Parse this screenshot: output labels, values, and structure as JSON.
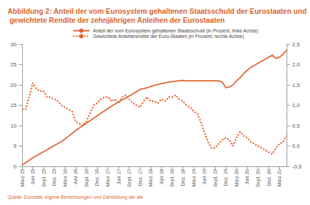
{
  "chart_data": {
    "type": "line",
    "title": "Abbildung 2: Anteil der vom Eurosystem gehaltenen Staatsschuld der Eurostaaten und gewichtete Rendite der zehnjährigen Anleihen der Eurostaaten",
    "source": "Quelle: Eurostat, eigene Berechnungen und Darstellung der aik",
    "categories": [
      "März 15",
      null,
      null,
      "Juni 15",
      null,
      null,
      "Sept. 15",
      null,
      null,
      "Dez. 15",
      null,
      null,
      "März 16",
      null,
      null,
      "Juni 16",
      null,
      null,
      "Sept. 16",
      null,
      null,
      "Dez. 16",
      null,
      null,
      "März 17",
      null,
      null,
      "Juni 17",
      null,
      null,
      "Sept. 17",
      null,
      null,
      "Dez. 17",
      null,
      null,
      "März 18",
      null,
      null,
      "Juni 18",
      null,
      null,
      "Sept. 18",
      null,
      null,
      "Dez. 18",
      null,
      null,
      "März 19",
      null,
      null,
      "Juni 19",
      null,
      null,
      "Sept. 19",
      null,
      null,
      "Dez. 19",
      null,
      null,
      "März 20",
      null,
      null,
      "Juni 20",
      null,
      null,
      "Sept. 20",
      null,
      null,
      "Dez. 20",
      null,
      null,
      "März 21",
      null,
      null
    ],
    "series": [
      {
        "name": "Anteil der vom Eurosystem gehaltenen Staatsschuld (in Prozent, linke Achse)",
        "color": "#e2622c",
        "line_style": "solid",
        "marker": "none",
        "axis": "y",
        "values": [
          0.3,
          0.9,
          1.5,
          2.1,
          2.6,
          3.1,
          3.6,
          4.1,
          4.6,
          5.1,
          5.6,
          6.1,
          6.7,
          7.4,
          8.1,
          8.8,
          9.4,
          10.0,
          10.6,
          11.2,
          11.8,
          12.4,
          13.0,
          13.6,
          14.2,
          14.8,
          15.3,
          15.8,
          16.3,
          16.8,
          17.3,
          17.8,
          18.3,
          18.9,
          19.1,
          19.3,
          19.6,
          19.9,
          20.1,
          20.3,
          20.5,
          20.7,
          20.8,
          20.9,
          21.0,
          21.1,
          21.0,
          21.0,
          21.0,
          21.0,
          21.0,
          21.0,
          21.0,
          21.0,
          21.0,
          21.0,
          20.7,
          19.3,
          19.5,
          20.0,
          21.0,
          21.8,
          22.8,
          23.6,
          24.3,
          24.8,
          25.3,
          25.8,
          26.3,
          26.8,
          27.3,
          26.5,
          26.8,
          27.5,
          28.6
        ]
      },
      {
        "name": "Gewichtete Anleiherendite der Euro-Staaten (in Prozent, rechte Achse)",
        "color": "#e2622c",
        "line_style": "dotted",
        "marker": "none",
        "axis": "y2",
        "values": [
          0.9,
          0.9,
          1.2,
          1.55,
          1.4,
          1.35,
          1.35,
          1.2,
          1.2,
          1.15,
          1.1,
          1.0,
          0.95,
          0.9,
          0.85,
          0.6,
          0.55,
          0.5,
          0.6,
          0.8,
          1.0,
          1.05,
          1.15,
          1.2,
          1.2,
          1.1,
          1.15,
          1.05,
          1.2,
          1.25,
          1.15,
          1.05,
          1.0,
          0.95,
          1.1,
          1.2,
          1.1,
          1.1,
          1.05,
          1.15,
          1.1,
          1.2,
          1.2,
          1.25,
          1.15,
          1.1,
          1.0,
          0.95,
          0.85,
          0.8,
          0.6,
          0.35,
          0.1,
          -0.05,
          -0.05,
          0.05,
          0.15,
          0.2,
          0.15,
          0.0,
          0.2,
          0.35,
          0.25,
          0.2,
          0.1,
          0.05,
          0.0,
          -0.05,
          -0.1,
          -0.15,
          -0.2,
          -0.05,
          0.05,
          0.1,
          0.25
        ]
      }
    ],
    "ylim": [
      0,
      30
    ],
    "yticks": [
      0,
      5,
      10,
      15,
      20,
      25,
      30
    ],
    "y2lim": [
      -0.5,
      2.5
    ],
    "y2ticks": [
      {
        "value": -0.5,
        "label": "-0,5"
      },
      {
        "value": 0,
        "label": "0,0"
      },
      {
        "value": 0.5,
        "label": "0,5"
      },
      {
        "value": 1,
        "label": "1,0"
      },
      {
        "value": 1.5,
        "label": "1,5"
      },
      {
        "value": 2,
        "label": "2,0"
      },
      {
        "value": 2.5,
        "label": "2,5"
      }
    ],
    "grid": false,
    "legend": "top"
  }
}
